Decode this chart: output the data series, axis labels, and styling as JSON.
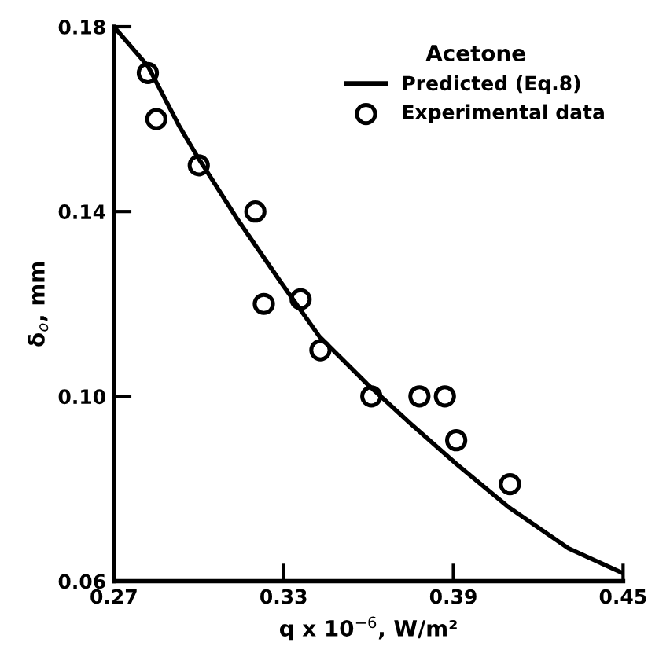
{
  "chart_data": {
    "type": "scatter",
    "xlabel": "q x 10$^{−6}$, W/m²",
    "ylabel": "δ$_{o}$, mm",
    "legend_title": "Acetone",
    "legend": "top right",
    "xlim": [
      0.27,
      0.45
    ],
    "ylim": [
      0.06,
      0.18
    ],
    "xticks": [
      0.27,
      0.33,
      0.39,
      0.45
    ],
    "yticks": [
      0.06,
      {
        "value": 0.1,
        "label": "0.10"
      },
      0.14,
      0.18
    ],
    "grid": false,
    "series": [
      {
        "name": "Predicted (Eq.8)",
        "type": "line",
        "color": "#000000",
        "marker": "none",
        "line_style": "solid",
        "x": [
          0.27,
          0.282,
          0.293,
          0.2995,
          0.3137,
          0.329,
          0.3427,
          0.3595,
          0.3747,
          0.391,
          0.4098,
          0.4307,
          0.45
        ],
        "values": [
          0.18,
          0.1715,
          0.1586,
          0.1519,
          0.1383,
          0.1247,
          0.1129,
          0.1027,
          0.0942,
          0.0854,
          0.0759,
          0.0671,
          0.0617
        ]
      },
      {
        "name": "Experimental data",
        "color": "#000000",
        "marker": "circle",
        "x": [
          0.282,
          0.285,
          0.3,
          0.32,
          0.323,
          0.336,
          0.343,
          0.361,
          0.378,
          0.387,
          0.391,
          0.41
        ],
        "values": [
          0.17,
          0.16,
          0.15,
          0.14,
          0.12,
          0.121,
          0.11,
          0.1,
          0.1,
          0.1,
          0.0905,
          0.081
        ]
      }
    ]
  }
}
